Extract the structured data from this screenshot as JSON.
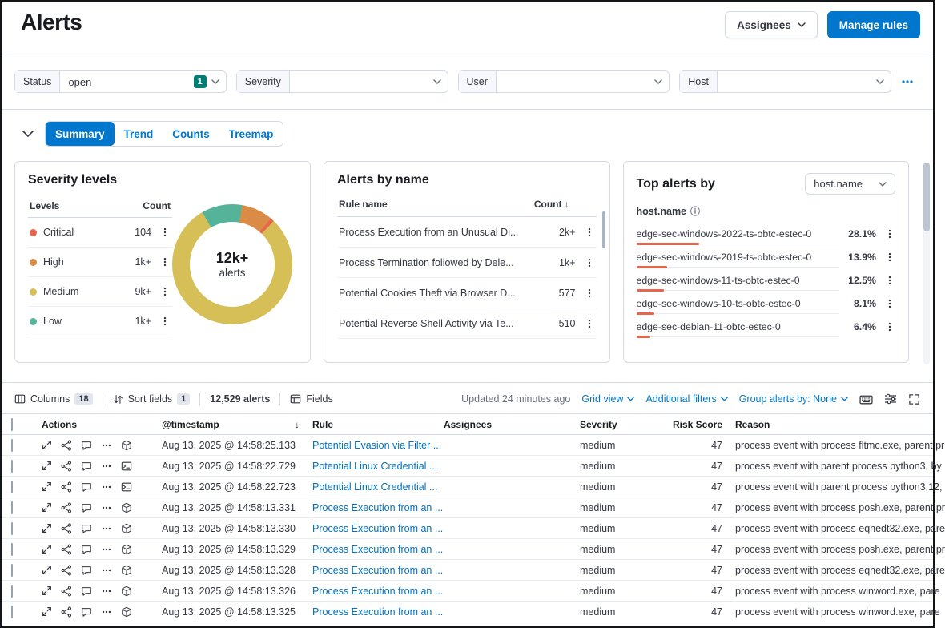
{
  "colors": {
    "primary": "#0077CC",
    "critical": "#E7664C",
    "high": "#DA8B45",
    "medium": "#D6BF57",
    "low": "#54B399",
    "top_alert_bar": "#E7664C",
    "filter_badge": "#017D73"
  },
  "header": {
    "title": "Alerts",
    "assignees_button": "Assignees",
    "manage_rules_button": "Manage rules"
  },
  "filters": {
    "status": {
      "label": "Status",
      "value": "open",
      "count_badge": "1"
    },
    "severity": {
      "label": "Severity",
      "value": ""
    },
    "user": {
      "label": "User",
      "value": ""
    },
    "host": {
      "label": "Host",
      "value": ""
    }
  },
  "charts": {
    "tabs": [
      {
        "label": "Summary",
        "selected": true
      },
      {
        "label": "Trend",
        "selected": false
      },
      {
        "label": "Counts",
        "selected": false
      },
      {
        "label": "Treemap",
        "selected": false
      }
    ],
    "severity_panel": {
      "title": "Severity levels",
      "levels_header": "Levels",
      "count_header": "Count",
      "rows": [
        {
          "label": "Critical",
          "count": "104",
          "color": "#E7664C"
        },
        {
          "label": "High",
          "count": "1k+",
          "color": "#DA8B45"
        },
        {
          "label": "Medium",
          "count": "9k+",
          "color": "#D6BF57"
        },
        {
          "label": "Low",
          "count": "1k+",
          "color": "#54B399"
        }
      ],
      "donut": {
        "center_value": "12k+",
        "center_label": "alerts",
        "segments": [
          {
            "label": "Low",
            "color": "#54B399",
            "pct": 11
          },
          {
            "label": "High",
            "color": "#DA8B45",
            "pct": 8.5
          },
          {
            "label": "Critical",
            "color": "#E7664C",
            "pct": 1
          },
          {
            "label": "Medium",
            "color": "#D6BF57",
            "pct": 79.5
          }
        ]
      }
    },
    "alerts_by_name_panel": {
      "title": "Alerts by name",
      "rule_name_header": "Rule name",
      "count_header": "Count",
      "rows": [
        {
          "name": "Process Execution from an Unusual Di...",
          "count": "2k+"
        },
        {
          "name": "Process Termination followed by Dele...",
          "count": "1k+"
        },
        {
          "name": "Potential Cookies Theft via Browser D...",
          "count": "577"
        },
        {
          "name": "Potential Reverse Shell Activity via Te...",
          "count": "510"
        }
      ]
    },
    "top_alerts_panel": {
      "title": "Top alerts by",
      "field_selector_value": "host.name",
      "column_header": "host.name",
      "rows": [
        {
          "name": "edge-sec-windows-2022-ts-obtc-estec-0",
          "pct": "28.1%",
          "bar": 28.1
        },
        {
          "name": "edge-sec-windows-2019-ts-obtc-estec-0",
          "pct": "13.9%",
          "bar": 13.9
        },
        {
          "name": "edge-sec-windows-11-ts-obtc-estec-0",
          "pct": "12.5%",
          "bar": 12.5
        },
        {
          "name": "edge-sec-windows-10-ts-obtc-estec-0",
          "pct": "8.1%",
          "bar": 8.1
        },
        {
          "name": "edge-sec-debian-11-obtc-estec-0",
          "pct": "6.4%",
          "bar": 6.4
        }
      ]
    }
  },
  "toolbar": {
    "columns_label": "Columns",
    "columns_count": "18",
    "sort_label": "Sort fields",
    "sort_count": "1",
    "alerts_count": "12,529 alerts",
    "fields_label": "Fields",
    "updated": "Updated 24 minutes ago",
    "grid_view": "Grid view",
    "additional_filters": "Additional filters",
    "group_by": "Group alerts by: None"
  },
  "table": {
    "headers": {
      "actions": "Actions",
      "timestamp": "@timestamp",
      "rule": "Rule",
      "assignees": "Assignees",
      "severity": "Severity",
      "risk_score": "Risk Score",
      "reason": "Reason"
    },
    "rows": [
      {
        "timestamp": "Aug 13, 2025 @ 14:58:25.133",
        "rule": "Potential Evasion via Filter ...",
        "assignees": "",
        "severity": "medium",
        "risk_score": "47",
        "reason": "process event with process fltmc.exe, parent pr",
        "context_icon": "cube"
      },
      {
        "timestamp": "Aug 13, 2025 @ 14:58:22.729",
        "rule": "Potential Linux Credential ...",
        "assignees": "",
        "severity": "medium",
        "risk_score": "47",
        "reason": "process event with parent process python3, by",
        "context_icon": "terminal"
      },
      {
        "timestamp": "Aug 13, 2025 @ 14:58:22.723",
        "rule": "Potential Linux Credential ...",
        "assignees": "",
        "severity": "medium",
        "risk_score": "47",
        "reason": "process event with parent process python3.12,",
        "context_icon": "terminal"
      },
      {
        "timestamp": "Aug 13, 2025 @ 14:58:13.331",
        "rule": "Process Execution from an ...",
        "assignees": "",
        "severity": "medium",
        "risk_score": "47",
        "reason": "process event with process posh.exe, parent pr",
        "context_icon": "cube"
      },
      {
        "timestamp": "Aug 13, 2025 @ 14:58:13.330",
        "rule": "Process Execution from an ...",
        "assignees": "",
        "severity": "medium",
        "risk_score": "47",
        "reason": "process event with process eqnedt32.exe, pare",
        "context_icon": "cube"
      },
      {
        "timestamp": "Aug 13, 2025 @ 14:58:13.329",
        "rule": "Process Execution from an ...",
        "assignees": "",
        "severity": "medium",
        "risk_score": "47",
        "reason": "process event with process posh.exe, parent pr",
        "context_icon": "cube"
      },
      {
        "timestamp": "Aug 13, 2025 @ 14:58:13.328",
        "rule": "Process Execution from an ...",
        "assignees": "",
        "severity": "medium",
        "risk_score": "47",
        "reason": "process event with process eqnedt32.exe, pare",
        "context_icon": "cube"
      },
      {
        "timestamp": "Aug 13, 2025 @ 14:58:13.326",
        "rule": "Process Execution from an ...",
        "assignees": "",
        "severity": "medium",
        "risk_score": "47",
        "reason": "process event with process winword.exe, pare",
        "context_icon": "cube"
      },
      {
        "timestamp": "Aug 13, 2025 @ 14:58:13.325",
        "rule": "Process Execution from an ...",
        "assignees": "",
        "severity": "medium",
        "risk_score": "47",
        "reason": "process event with process winword.exe, pare",
        "context_icon": "cube"
      }
    ]
  }
}
